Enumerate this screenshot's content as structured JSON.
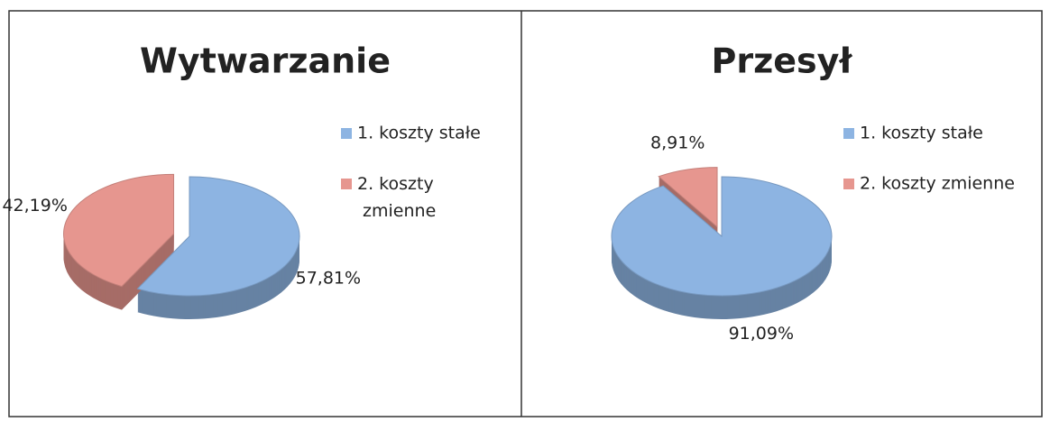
{
  "chart_data": [
    {
      "type": "pie",
      "title": "Wytwarzanie",
      "categories": [
        "1. koszty stałe",
        "2. koszty zmienne"
      ],
      "values": [
        57.81,
        42.19
      ],
      "value_labels": [
        "57,81%",
        "42,19%"
      ],
      "colors": [
        "#8db4e2",
        "#e6968f"
      ],
      "exploded": [
        false,
        true
      ]
    },
    {
      "type": "pie",
      "title": "Przesył",
      "categories": [
        "1. koszty stałe",
        "2. koszty zmienne"
      ],
      "values": [
        91.09,
        8.91
      ],
      "value_labels": [
        "91,09%",
        "8,91%"
      ],
      "colors": [
        "#8db4e2",
        "#e6968f"
      ],
      "exploded": [
        false,
        true
      ]
    }
  ]
}
